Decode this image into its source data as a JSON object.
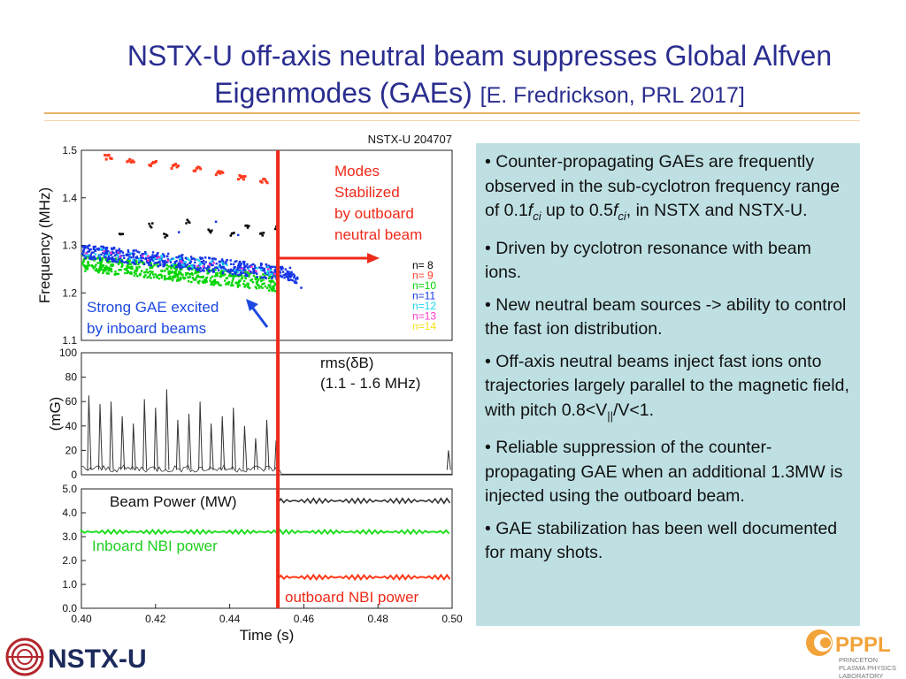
{
  "slide": {
    "title_main": "NSTX-U off-axis neutral beam suppresses Global Alfven Eigenmodes (GAEs)",
    "title_citation": "[E. Fredrickson, PRL 2017]",
    "bullets": [
      {
        "segments": [
          "Counter-propagating GAEs are frequently observed in the sub-cyclotron frequency range of 0.1",
          "f",
          "ci",
          " up to 0.5",
          "f",
          "ci",
          ", in NSTX and NSTX-U."
        ]
      },
      {
        "segments": [
          "Driven by cyclotron resonance with beam ions."
        ]
      },
      {
        "segments": [
          "New neutral beam sources -> ability to control the fast ion distribution."
        ]
      },
      {
        "segments": [
          "Off-axis neutral beams inject fast ions onto trajectories largely parallel to the magnetic field, with pitch 0.8<V",
          "||",
          "/V<1."
        ]
      },
      {
        "segments": [
          "Reliable suppression of the counter-propagating GAE when an additional 1.3MW is injected using the outboard beam."
        ]
      },
      {
        "segments": [
          "GAE stabilization has been well documented for many shots."
        ]
      }
    ],
    "bullet_char": "•",
    "logos": {
      "nstx": "NSTX-U",
      "pppl": "PPPL",
      "pppl_sub": [
        "PRINCETON",
        "PLASMA PHYSICS",
        "LABORATORY"
      ]
    }
  },
  "chart_data": [
    {
      "type": "scatter",
      "shot_label": "NSTX-U  204707",
      "ylabel": "Frequency (MHz)",
      "ylim": [
        1.1,
        1.5
      ],
      "xlim": [
        0.4,
        0.5
      ],
      "yticks": [
        "1.5",
        "1.4",
        "1.3",
        "1.2",
        "1.1"
      ],
      "series": [
        {
          "name": "n=  8",
          "color": "#000000"
        },
        {
          "name": "n=  9",
          "color": "#ff3b1f"
        },
        {
          "name": "n=10",
          "color": "#00d400"
        },
        {
          "name": "n=11",
          "color": "#1535e6"
        },
        {
          "name": "n=12",
          "color": "#13d5f2"
        },
        {
          "name": "n=13",
          "color": "#ff33cc"
        },
        {
          "name": "n=14",
          "color": "#f5e11a"
        }
      ],
      "red_modes": [
        [
          0.406,
          1.487
        ],
        [
          0.412,
          1.482
        ],
        [
          0.418,
          1.476
        ],
        [
          0.424,
          1.47
        ],
        [
          0.43,
          1.462
        ],
        [
          0.436,
          1.455
        ],
        [
          0.442,
          1.447
        ],
        [
          0.448,
          1.44
        ]
      ],
      "black_modes": [
        [
          0.41,
          1.33
        ],
        [
          0.418,
          1.345
        ],
        [
          0.422,
          1.322
        ],
        [
          0.428,
          1.352
        ],
        [
          0.434,
          1.334
        ],
        [
          0.44,
          1.325
        ],
        [
          0.444,
          1.34
        ],
        [
          0.448,
          1.328
        ],
        [
          0.452,
          1.338
        ]
      ],
      "extra_points": [
        [
          0.426,
          1.33
        ],
        [
          0.436,
          1.352
        ],
        [
          0.442,
          1.324
        ],
        [
          0.456,
          1.255
        ],
        [
          0.458,
          1.232
        ],
        [
          0.459,
          1.213
        ]
      ],
      "upper_band": {
        "x": [
          0.4,
          0.453
        ],
        "y": [
          1.29,
          1.245
        ]
      },
      "lower_band": {
        "x": [
          0.4,
          0.453
        ],
        "y": [
          1.265,
          1.222
        ]
      },
      "post_band": {
        "x": [
          0.453,
          0.458
        ],
        "y": [
          1.25,
          1.228
        ]
      },
      "annotations": [
        "Modes",
        "Stabilized",
        "by outboard",
        "neutral beam",
        "Strong GAE excited",
        "by inboard beams"
      ],
      "marker_time": 0.453
    },
    {
      "type": "line",
      "ylabel": "(mG)",
      "series_label": [
        "rms(δB)",
        "(1.1 - 1.6 MHz)"
      ],
      "ylim": [
        0,
        100
      ],
      "yticks": [
        "100",
        "80",
        "60",
        "40",
        "20",
        "0"
      ],
      "peak_times": [
        0.402,
        0.405,
        0.408,
        0.411,
        0.414,
        0.417,
        0.42,
        0.423,
        0.426,
        0.429,
        0.432,
        0.435,
        0.438,
        0.441,
        0.444,
        0.447,
        0.45,
        0.4525,
        0.499
      ],
      "peak_values": [
        65,
        58,
        60,
        48,
        42,
        62,
        55,
        70,
        45,
        50,
        60,
        42,
        48,
        55,
        40,
        30,
        45,
        28,
        20
      ]
    },
    {
      "type": "line",
      "ylim": [
        0,
        5
      ],
      "xlim": [
        0.4,
        0.5
      ],
      "yticks": [
        "5.0",
        "4.0",
        "3.0",
        "2.0",
        "1.0",
        "0.0"
      ],
      "xticks": [
        "0.40",
        "0.42",
        "0.44",
        "0.46",
        "0.48",
        "0.50"
      ],
      "xlabel": "Time (s)",
      "series": [
        {
          "name": "Beam Power (MW)",
          "color": "#333333",
          "x_start": 0.453,
          "level": 4.5
        },
        {
          "name": "Inboard NBI power",
          "color": "#22dd22",
          "x_start": 0.4,
          "level": 3.2
        },
        {
          "name": "outboard NBI power",
          "color": "#ff3a1a",
          "x_start": 0.453,
          "level": 1.3
        }
      ]
    }
  ]
}
